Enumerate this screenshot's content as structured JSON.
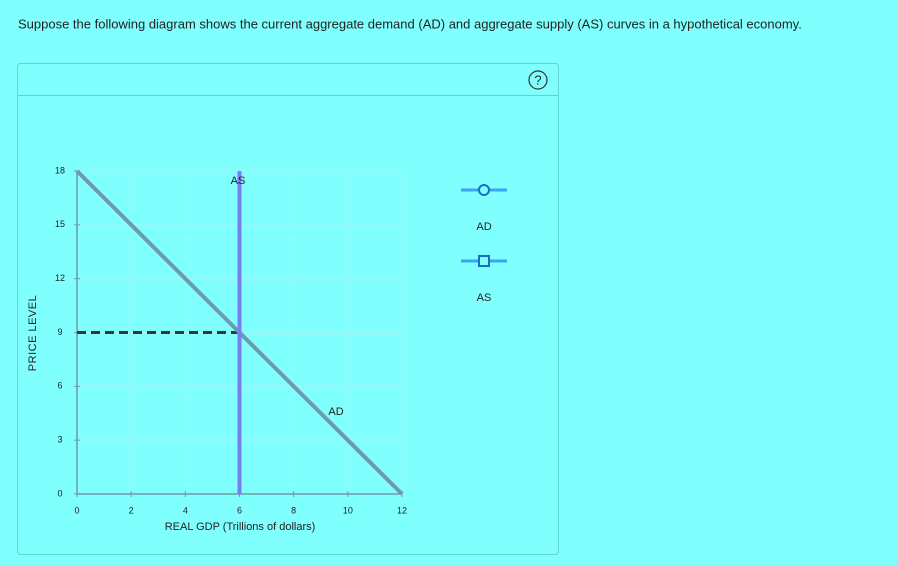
{
  "question": "Suppose the following diagram shows the current aggregate demand (AD) and aggregate supply (AS) curves in a hypothetical economy.",
  "help": "?",
  "chart_data": {
    "type": "line",
    "x_label": "REAL GDP (Trillions of dollars)",
    "y_label": "PRICE LEVEL",
    "xlim": [
      0,
      12
    ],
    "ylim": [
      0,
      18
    ],
    "xticks": [
      0,
      2,
      4,
      6,
      8,
      10,
      12
    ],
    "yticks": [
      0,
      3,
      6,
      9,
      12,
      15,
      18
    ],
    "grid": true,
    "series": [
      {
        "name": "AD",
        "color": "#6f9aab",
        "x": [
          0,
          12
        ],
        "values": [
          18,
          0
        ]
      },
      {
        "name": "AS",
        "color": "#7b7bf7",
        "x": [
          6,
          6
        ],
        "values": [
          0,
          18
        ]
      }
    ],
    "reference_lines": [
      {
        "color": "#2e3b2e",
        "x": [
          0,
          6
        ],
        "values": [
          9,
          9
        ]
      }
    ]
  }
}
